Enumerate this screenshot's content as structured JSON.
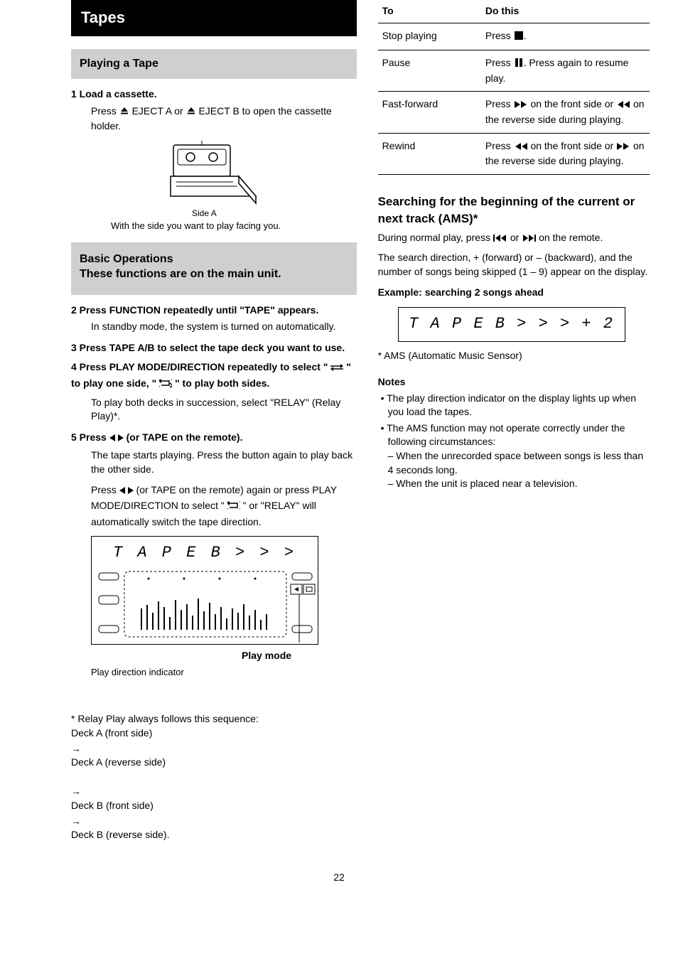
{
  "section_header": "Tapes",
  "left": {
    "playing_header": "Playing a Tape",
    "step1_title": "1 Load a cassette.",
    "step1_body_a": "Press ",
    "step1_body_b": " EJECT A or ",
    "step1_body_c": " EJECT B to open the cassette holder.",
    "illus_label": "Side A",
    "step2_caption": "With the side you want to play facing you.",
    "basic_ops_header": "Basic Operations\nThese functions are on the main unit.",
    "step2_title": "2 Press FUNCTION repeatedly until \"TAPE\" appears.",
    "step2_body": "In standby mode, the system is turned on automatically.",
    "step3_title": "3 Press TAPE A/B to select the tape deck you want to use.",
    "step4_title": "4 Press PLAY MODE/DIRECTION repeatedly to select \"",
    "step4_body_a": "\" to play one side, \"",
    "step4_body_b": "\" to play both sides.",
    "step4_body_c": "To play both decks in succession, select \"RELAY\" (Relay Play)*.",
    "step5_title_a": "5 Press ",
    "step5_title_b": " (or TAPE on the remote).",
    "step5_body_a": "The tape starts playing. Press the button again to play back the other side.",
    "step5_body_b": "Press ",
    "step5_body_c": " (or TAPE on the remote) again or press PLAY MODE/DIRECTION to select \"",
    "step5_body_d": "\" or \"RELAY\" will automatically switch the tape direction.",
    "panel_seg_text": "T A P E   B   > > >",
    "panel_caption": "Play direction indicator",
    "relay_footnote_a": "* Relay Play always follows this sequence:\nDeck A (front side) ",
    "relay_footnote_b": " Deck A (reverse side)\n",
    "relay_footnote_c": " Deck B (front side) ",
    "relay_footnote_d": " Deck B (reverse side).",
    "panel_leader_label": "Play mode"
  },
  "right": {
    "table": {
      "col1": "To",
      "col2": "Do this",
      "rows": [
        {
          "op": "Stop playing",
          "do_a": "Press ",
          "icon": "stop",
          "do_b": "."
        },
        {
          "op": "Pause",
          "do_a": "Press ",
          "icon": "pause",
          "do_b": ". Press again to resume play."
        },
        {
          "op": "Fast-forward",
          "do_a": "Press ",
          "icon": "ff",
          "do_b": " on the front side or ",
          "icon2": "rw",
          "do_c": " on the reverse side during playing."
        },
        {
          "op": "Rewind",
          "do_a": "Press ",
          "icon": "rw",
          "do_b": " on the front side or ",
          "icon2": "ff",
          "do_c": " on the reverse side during playing."
        }
      ]
    },
    "ams_head": "Searching for the beginning of the current or next track (AMS)*",
    "ams_body_a": "During normal play, press ",
    "ams_body_b": " or ",
    "ams_body_c": " on the remote.",
    "ams_body_d": "The search direction, + (forward) or – (backward), and the number of songs being skipped (1 – 9) appear on the display.",
    "ams_example_label": "Example: searching 2 songs ahead",
    "ams_seg_text": "T A P E   B > > > + 2",
    "ams_footnote": "* AMS (Automatic Music Sensor)",
    "notes_label": "Notes",
    "notes": [
      "The play direction indicator on the display lights up when you load the tapes.",
      "The AMS function may not operate correctly under the following circumstances:\n– When the unrecorded space between songs is less than 4 seconds long.\n– When the unit is placed near a television."
    ]
  },
  "pagenum": "22",
  "colors": {
    "header_bg": "#000000",
    "header_fg": "#ffffff",
    "grey_bg": "#cfcfcf"
  }
}
